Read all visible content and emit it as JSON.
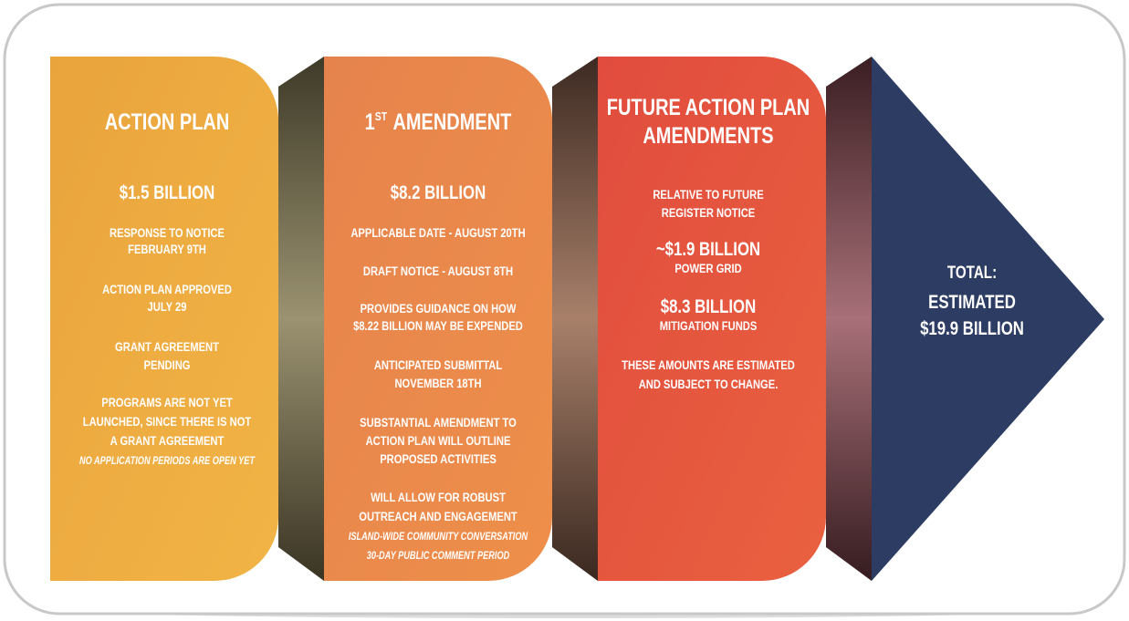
{
  "panels": [
    {
      "title": "ACTION PLAN",
      "amount": "$1.5 BILLION",
      "items": [
        [
          "RESPONSE TO NOTICE",
          "FEBRUARY 9TH"
        ],
        [
          "ACTION PLAN APPROVED",
          "JULY 29"
        ],
        [
          "GRANT AGREEMENT",
          "PENDING"
        ],
        [
          "PROGRAMS ARE NOT YET",
          "LAUNCHED, SINCE THERE IS NOT",
          "A GRANT AGREEMENT"
        ]
      ],
      "notes": [
        "NO APPLICATION PERIODS ARE OPEN YET"
      ]
    },
    {
      "title_number": "1",
      "title_superscript": "ST",
      "title": "AMENDMENT",
      "amount": "$8.2 BILLION",
      "items": [
        [
          "APPLICABLE DATE - AUGUST 20TH"
        ],
        [
          "DRAFT NOTICE - AUGUST 8TH"
        ],
        [
          "PROVIDES GUIDANCE ON HOW",
          "$8.22 BILLION MAY BE EXPENDED"
        ],
        [
          "ANTICIPATED SUBMITTAL",
          "NOVEMBER 18TH"
        ],
        [
          "SUBSTANTIAL AMENDMENT TO",
          "ACTION PLAN WILL OUTLINE",
          "PROPOSED ACTIVITIES"
        ],
        [
          "WILL ALLOW FOR ROBUST",
          "OUTREACH AND ENGAGEMENT"
        ]
      ],
      "notes": [
        "ISLAND-WIDE COMMUNITY CONVERSATION",
        "30-DAY PUBLIC COMMENT PERIOD"
      ]
    },
    {
      "title_lines": [
        "FUTURE ACTION PLAN",
        "AMENDMENTS"
      ],
      "intro": [
        "RELATIVE TO FUTURE",
        "REGISTER NOTICE"
      ],
      "amounts": [
        {
          "amount": "~$1.9 BILLION",
          "label": "POWER GRID"
        },
        {
          "amount": "$8.3 BILLION",
          "label": "MITIGATION FUNDS"
        }
      ],
      "disclaimer": [
        "THESE AMOUNTS ARE ESTIMATED",
        "AND SUBJECT TO CHANGE."
      ]
    }
  ],
  "total": {
    "label": "TOTAL:",
    "qualifier": "ESTIMATED",
    "amount": "$19.9 BILLION"
  }
}
